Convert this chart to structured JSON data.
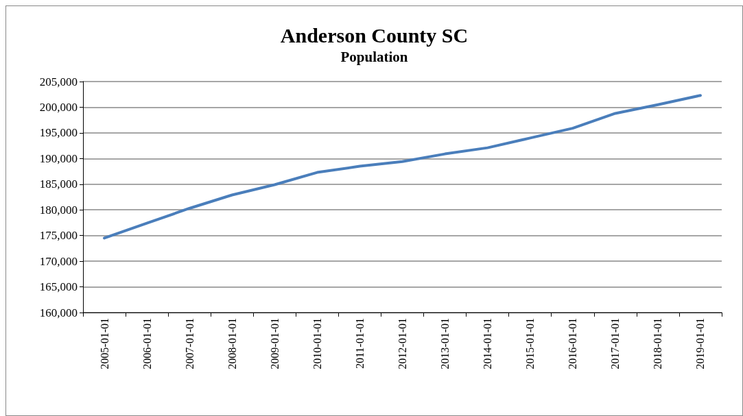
{
  "chart_data": {
    "type": "line",
    "title": "Anderson County SC",
    "subtitle": "Population",
    "categories": [
      "2005-01-01",
      "2006-01-01",
      "2007-01-01",
      "2008-01-01",
      "2009-01-01",
      "2010-01-01",
      "2011-01-01",
      "2012-01-01",
      "2013-01-01",
      "2014-01-01",
      "2015-01-01",
      "2016-01-01",
      "2017-01-01",
      "2018-01-01",
      "2019-01-01"
    ],
    "series": [
      {
        "color": "#4a7ebb",
        "values": [
          174500,
          177400,
          180300,
          182900,
          184900,
          187300,
          188500,
          189400,
          190900,
          192100,
          194000,
          195900,
          198800,
          200500,
          202300
        ]
      }
    ],
    "ylim": [
      160000,
      205000
    ],
    "yticks": [
      {
        "value": 160000,
        "label": "160,000"
      },
      {
        "value": 165000,
        "label": "165,000"
      },
      {
        "value": 170000,
        "label": "170,000"
      },
      {
        "value": 175000,
        "label": "175,000"
      },
      {
        "value": 180000,
        "label": "180,000"
      },
      {
        "value": 185000,
        "label": "185,000"
      },
      {
        "value": 190000,
        "label": "190,000"
      },
      {
        "value": 195000,
        "label": "195,000"
      },
      {
        "value": 200000,
        "label": "200,000"
      },
      {
        "value": 205000,
        "label": "205,000"
      }
    ],
    "grid": "y",
    "marker": "none",
    "line_style": "solid"
  }
}
